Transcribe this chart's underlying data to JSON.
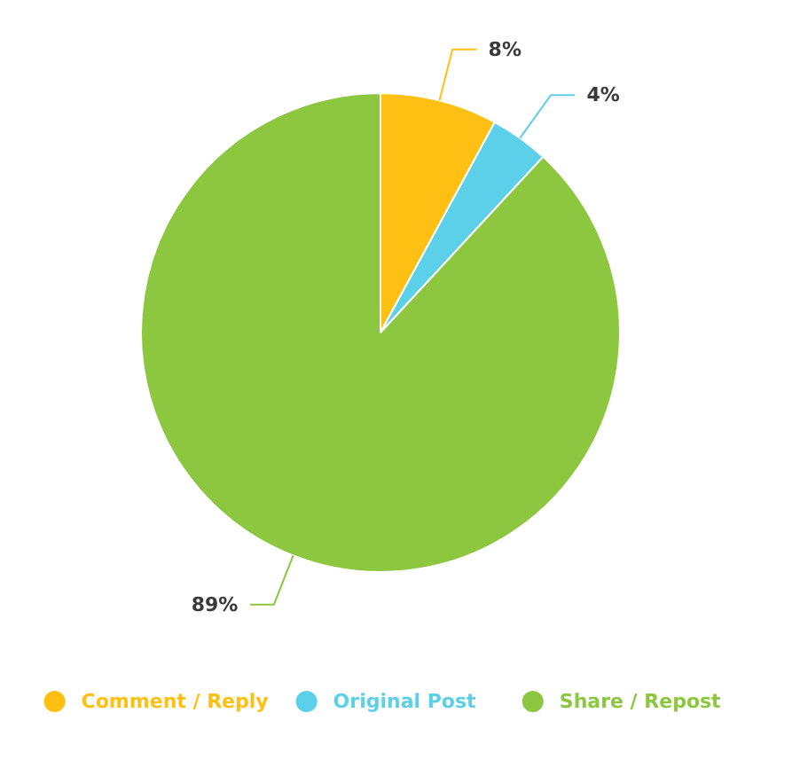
{
  "chart_data": {
    "type": "pie",
    "categories": [
      "Comment / Reply",
      "Original Post",
      "Share / Repost"
    ],
    "values": [
      8,
      4,
      89
    ],
    "colors": [
      "#ffc013",
      "#5ccfe9",
      "#8dc63f"
    ],
    "value_labels": [
      "8%",
      "4%",
      "89%"
    ],
    "legend": "bottom"
  }
}
